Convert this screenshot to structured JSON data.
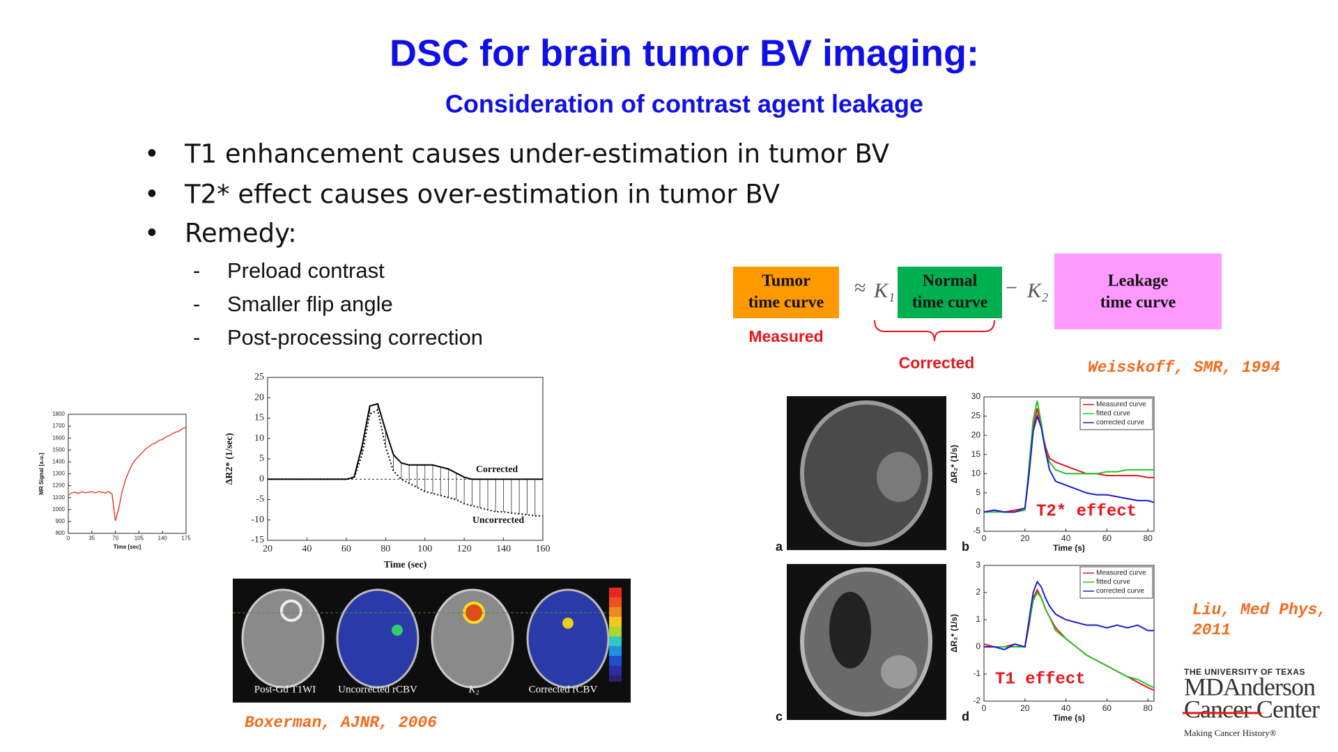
{
  "title": "DSC for brain tumor BV imaging:",
  "subtitle": "Consideration of contrast agent leakage",
  "bullet_symbol": "•",
  "sub_bullet_symbol": "-",
  "bullets": [
    "T1 enhancement causes under-estimation in tumor BV",
    "T2* effect causes over-estimation in tumor BV",
    "Remedy:"
  ],
  "sub_bullets": [
    "Preload contrast",
    "Smaller flip angle",
    "Post-processing correction"
  ],
  "equation": {
    "tumor": [
      "Tumor",
      "time curve"
    ],
    "approx": "≈",
    "k1": "K₁",
    "normal": [
      "Normal",
      "time curve"
    ],
    "minus": "−",
    "k2": "K₂",
    "leakage": [
      "Leakage",
      "time curve"
    ],
    "measured": "Measured",
    "corrected": "Corrected"
  },
  "citations": {
    "weisskoff": "Weisskoff, SMR, 1994",
    "boxerman": "Boxerman, AJNR, 2006",
    "liu": [
      "Liu, Med Phys,",
      "2011"
    ]
  },
  "image_labels": [
    "Post-Gd T1WI",
    "Uncorrected rCBV",
    "K₂",
    "Corrected rCBV"
  ],
  "panel_labels": [
    "a",
    "b",
    "c",
    "d"
  ],
  "logo": {
    "university": "THE UNIVERSITY OF TEXAS",
    "name": "MDAnderson",
    "center": "Cancer Center",
    "tagline": "Making Cancer History®"
  },
  "chart_data": [
    {
      "type": "line",
      "xlabel": "Time [sec]",
      "ylabel": "MR Signal [a.u.]",
      "xlim": [
        0,
        175
      ],
      "xticks": [
        0,
        35,
        70,
        105,
        140,
        175
      ],
      "ylim": [
        800,
        1800
      ],
      "yticks": [
        800,
        900,
        1000,
        1100,
        1200,
        1300,
        1400,
        1500,
        1600,
        1700,
        1800
      ],
      "x": [
        0,
        5,
        10,
        15,
        20,
        25,
        30,
        35,
        40,
        45,
        50,
        55,
        60,
        65,
        70,
        75,
        80,
        85,
        90,
        95,
        100,
        105,
        110,
        115,
        120,
        125,
        130,
        135,
        140,
        145,
        150,
        155,
        160,
        165,
        170,
        175
      ],
      "series": [
        {
          "color": "#e8432c",
          "values": [
            1120,
            1140,
            1145,
            1135,
            1150,
            1140,
            1145,
            1150,
            1140,
            1150,
            1145,
            1140,
            1150,
            1130,
            905,
            1010,
            1150,
            1250,
            1320,
            1380,
            1420,
            1450,
            1480,
            1510,
            1530,
            1550,
            1560,
            1580,
            1590,
            1610,
            1620,
            1640,
            1650,
            1660,
            1680,
            1690
          ]
        }
      ]
    },
    {
      "type": "line",
      "xlabel": "Time (sec)",
      "ylabel": "ΔR2* (1/sec)",
      "xlim": [
        20,
        160
      ],
      "xticks": [
        20,
        40,
        60,
        80,
        100,
        120,
        140,
        160
      ],
      "ylim": [
        -15,
        25
      ],
      "yticks": [
        -15,
        -10,
        -5,
        0,
        5,
        10,
        15,
        20,
        25
      ],
      "annotations": [
        "Corrected",
        "Uncorrected"
      ],
      "x": [
        20,
        24,
        28,
        32,
        36,
        40,
        44,
        48,
        52,
        56,
        60,
        64,
        68,
        72,
        76,
        80,
        84,
        88,
        92,
        96,
        100,
        104,
        108,
        112,
        116,
        120,
        124,
        128,
        132,
        136,
        140,
        144,
        148,
        152,
        156,
        160
      ],
      "series": [
        {
          "color": "#000000",
          "dash": false,
          "values": [
            0,
            0,
            0,
            0,
            0,
            0,
            0,
            0,
            0,
            0,
            0,
            0.5,
            8,
            18,
            18.5,
            12,
            6,
            4,
            3.5,
            3.5,
            3.5,
            3.5,
            3,
            2.5,
            1.5,
            0.5,
            0,
            0,
            0,
            0,
            0,
            0,
            0,
            0,
            0,
            0
          ]
        },
        {
          "color": "#000000",
          "dash": true,
          "values": [
            0,
            0,
            0,
            0,
            0,
            0,
            0,
            0,
            0,
            0,
            0,
            0.3,
            6,
            16,
            17,
            8,
            2,
            0,
            -1,
            -2,
            -3,
            -3.5,
            -4,
            -4.5,
            -5,
            -6,
            -6.5,
            -7,
            -7.5,
            -8,
            -8,
            -8.3,
            -8.5,
            -8.7,
            -9,
            -9
          ]
        }
      ]
    },
    {
      "type": "line",
      "xlabel": "Time (s)",
      "ylabel": "ΔR₂* (1/s)",
      "xlim": [
        0,
        83
      ],
      "xticks": [
        0,
        20,
        40,
        60,
        80
      ],
      "ylim": [
        -5,
        30
      ],
      "yticks": [
        -5,
        0,
        5,
        10,
        15,
        20,
        25,
        30
      ],
      "legend": "upper right",
      "annotations": [
        "T2* effect"
      ],
      "annotation_color": "#e8141b",
      "x": [
        0,
        5,
        10,
        15,
        20,
        22,
        24,
        26,
        28,
        30,
        32,
        35,
        40,
        45,
        50,
        55,
        60,
        65,
        70,
        75,
        80,
        83
      ],
      "series": [
        {
          "name": "Measured curve",
          "color": "#e8141b",
          "values": [
            0,
            0.5,
            0,
            0.5,
            1,
            10,
            22,
            27,
            22,
            17,
            14,
            13,
            12,
            11,
            10,
            10,
            9.5,
            9.5,
            9.5,
            9.5,
            9,
            9
          ]
        },
        {
          "name": "fitted curve",
          "color": "#22c422",
          "values": [
            0,
            0,
            0,
            0,
            0.5,
            12,
            24,
            29,
            23,
            16,
            13,
            11,
            10,
            10,
            10,
            10,
            10.5,
            10.5,
            11,
            11,
            11,
            11
          ]
        },
        {
          "name": "corrected curve",
          "color": "#1a1ad6",
          "values": [
            0,
            0.5,
            0,
            0,
            1,
            10,
            21,
            25,
            22,
            16,
            11,
            8,
            7,
            6,
            5,
            4.5,
            4.5,
            4,
            3.5,
            3,
            3,
            2.5
          ]
        }
      ]
    },
    {
      "type": "line",
      "xlabel": "Time (s)",
      "ylabel": "ΔR₂* (1/s)",
      "xlim": [
        0,
        83
      ],
      "xticks": [
        0,
        20,
        40,
        60,
        80
      ],
      "ylim": [
        -2,
        3
      ],
      "yticks": [
        -2,
        -1,
        0,
        1,
        2,
        3
      ],
      "legend": "upper right",
      "annotations": [
        "T1 effect"
      ],
      "annotation_color": "#e8141b",
      "x": [
        0,
        5,
        10,
        15,
        20,
        22,
        24,
        26,
        28,
        30,
        32,
        35,
        40,
        45,
        50,
        55,
        60,
        65,
        70,
        75,
        80,
        83
      ],
      "series": [
        {
          "name": "Measured curve",
          "color": "#e8141b",
          "values": [
            0.1,
            0,
            0,
            0.1,
            0,
            0.8,
            1.8,
            2.1,
            1.8,
            1.4,
            1.1,
            0.7,
            0.3,
            0,
            -0.3,
            -0.5,
            -0.7,
            -0.9,
            -1.1,
            -1.3,
            -1.5,
            -1.6
          ]
        },
        {
          "name": "fitted curve",
          "color": "#22c422",
          "values": [
            0,
            0,
            0,
            0,
            0,
            0.9,
            1.7,
            2,
            1.8,
            1.4,
            1.1,
            0.6,
            0.3,
            0,
            -0.3,
            -0.5,
            -0.7,
            -0.9,
            -1.1,
            -1.2,
            -1.4,
            -1.5
          ]
        },
        {
          "name": "corrected curve",
          "color": "#1a1ad6",
          "values": [
            0,
            0,
            -0.1,
            0.1,
            0,
            1,
            2,
            2.4,
            2.2,
            1.8,
            1.5,
            1.2,
            1,
            0.9,
            0.8,
            0.8,
            0.7,
            0.8,
            0.7,
            0.8,
            0.6,
            0.6
          ]
        }
      ]
    }
  ]
}
